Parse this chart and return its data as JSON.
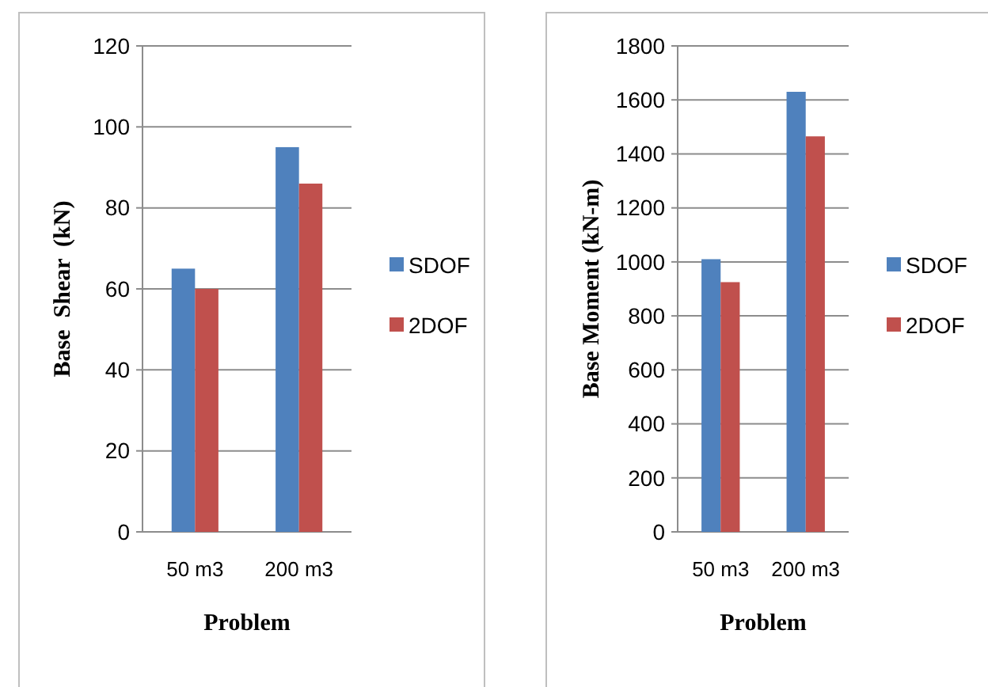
{
  "chart_data": [
    {
      "type": "bar",
      "xlabel": "Problem",
      "ylabel": "Base  Shear  (kN)",
      "categories": [
        "50 m3",
        "200 m3"
      ],
      "series": [
        {
          "name": "SDOF",
          "color": "#4f81bd",
          "values": [
            65,
            95
          ]
        },
        {
          "name": "2DOF",
          "color": "#c0504d",
          "values": [
            60,
            86
          ]
        }
      ],
      "ylim": [
        0,
        120
      ],
      "yticks": [
        0,
        20,
        40,
        60,
        80,
        100,
        120
      ],
      "grid": "y",
      "legend": "right"
    },
    {
      "type": "bar",
      "xlabel": "Problem",
      "ylabel": "Base Moment (kN-m)",
      "categories": [
        "50 m3",
        "200 m3"
      ],
      "series": [
        {
          "name": "SDOF",
          "color": "#4f81bd",
          "values": [
            1010,
            1630
          ]
        },
        {
          "name": "2DOF",
          "color": "#c0504d",
          "values": [
            925,
            1465
          ]
        }
      ],
      "ylim": [
        0,
        1800
      ],
      "yticks": [
        0,
        200,
        400,
        600,
        800,
        1000,
        1200,
        1400,
        1600,
        1800
      ],
      "grid": "y",
      "legend": "right"
    }
  ]
}
